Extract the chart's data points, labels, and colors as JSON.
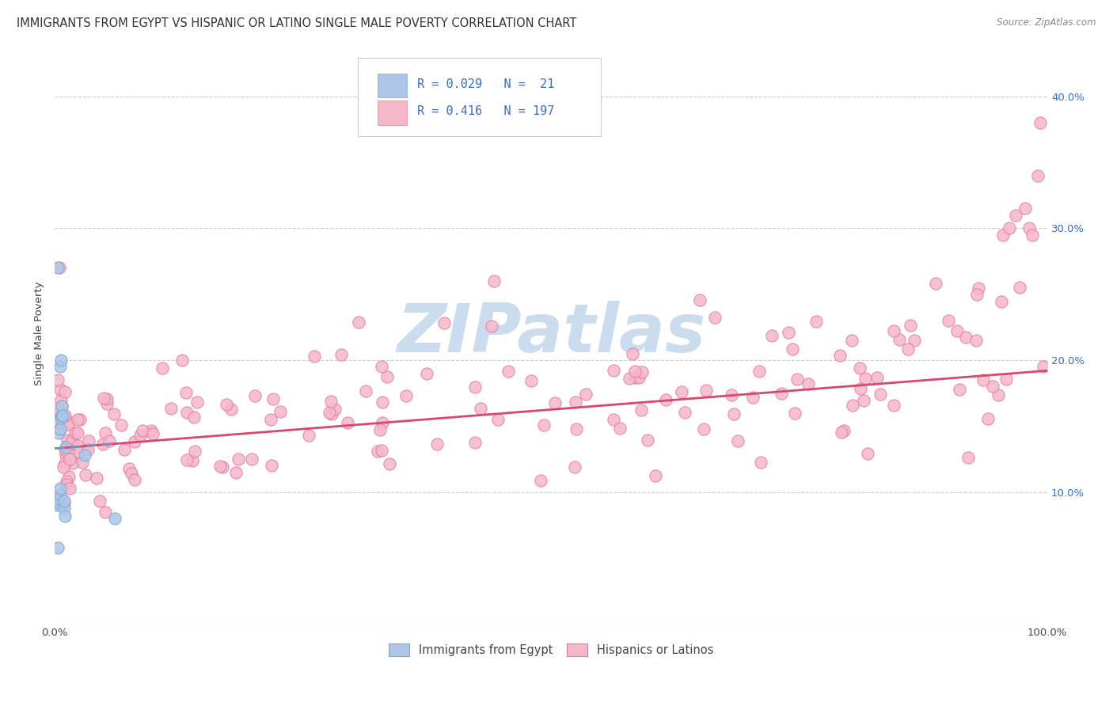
{
  "title": "IMMIGRANTS FROM EGYPT VS HISPANIC OR LATINO SINGLE MALE POVERTY CORRELATION CHART",
  "source": "Source: ZipAtlas.com",
  "ylabel": "Single Male Poverty",
  "xlim": [
    0.0,
    1.0
  ],
  "ylim": [
    0.0,
    0.44
  ],
  "xticks": [
    0.0,
    0.1,
    0.2,
    0.3,
    0.4,
    0.5,
    0.6,
    0.7,
    0.8,
    0.9,
    1.0
  ],
  "xticklabels": [
    "0.0%",
    "",
    "",
    "",
    "",
    "",
    "",
    "",
    "",
    "",
    "100.0%"
  ],
  "yticks_left": [
    0.0,
    0.1,
    0.2,
    0.3,
    0.4
  ],
  "yticklabels_left": [
    "",
    "",
    "",
    "",
    ""
  ],
  "yticks_right": [
    0.0,
    0.1,
    0.2,
    0.3,
    0.4
  ],
  "yticklabels_right": [
    "",
    "10.0%",
    "20.0%",
    "30.0%",
    "40.0%"
  ],
  "legend_R1": "0.029",
  "legend_N1": "21",
  "legend_R2": "0.416",
  "legend_N2": "197",
  "legend_label1": "Immigrants from Egypt",
  "legend_label2": "Hispanics or Latinos",
  "color1": "#adc6e8",
  "color2": "#f5b8cb",
  "edge_color1": "#7aaad4",
  "edge_color2": "#e87a9f",
  "line_color1": "#6699cc",
  "line_color2": "#d9476e",
  "legend_text_color": "#3a6cc8",
  "watermark_color": "#ccdcef",
  "title_fontsize": 10.5,
  "tick_fontsize": 9.5,
  "right_tick_color": "#3a6cc8",
  "hisp_trend_start_y": 0.133,
  "hisp_trend_end_y": 0.192,
  "egypt_trend_start_y": 0.133,
  "egypt_trend_end_y": 0.137
}
